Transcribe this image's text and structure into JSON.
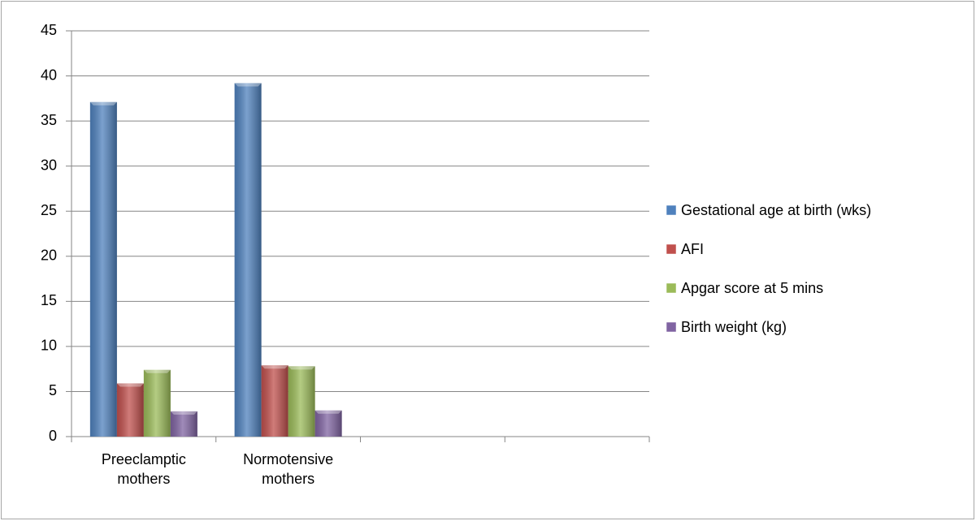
{
  "chart_data": {
    "type": "bar",
    "categories": [
      "Preeclamptic mothers",
      "Normotensive mothers",
      null,
      null
    ],
    "series": [
      {
        "name": "Gestational age at birth (wks)",
        "color": "#4f81bd",
        "values": [
          37.1,
          39.2,
          null,
          null
        ]
      },
      {
        "name": "AFI",
        "color": "#c0504d",
        "values": [
          5.9,
          7.9,
          null,
          null
        ]
      },
      {
        "name": "Apgar score at 5 mins",
        "color": "#9bbb59",
        "values": [
          7.4,
          7.8,
          null,
          null
        ]
      },
      {
        "name": "Birth weight (kg)",
        "color": "#8064a2",
        "values": [
          2.8,
          2.9,
          null,
          null
        ]
      }
    ],
    "ylim": [
      0,
      45
    ],
    "yticks": [
      0,
      5,
      10,
      15,
      20,
      25,
      30,
      35,
      40,
      45
    ],
    "grid": true,
    "legend": "right"
  }
}
